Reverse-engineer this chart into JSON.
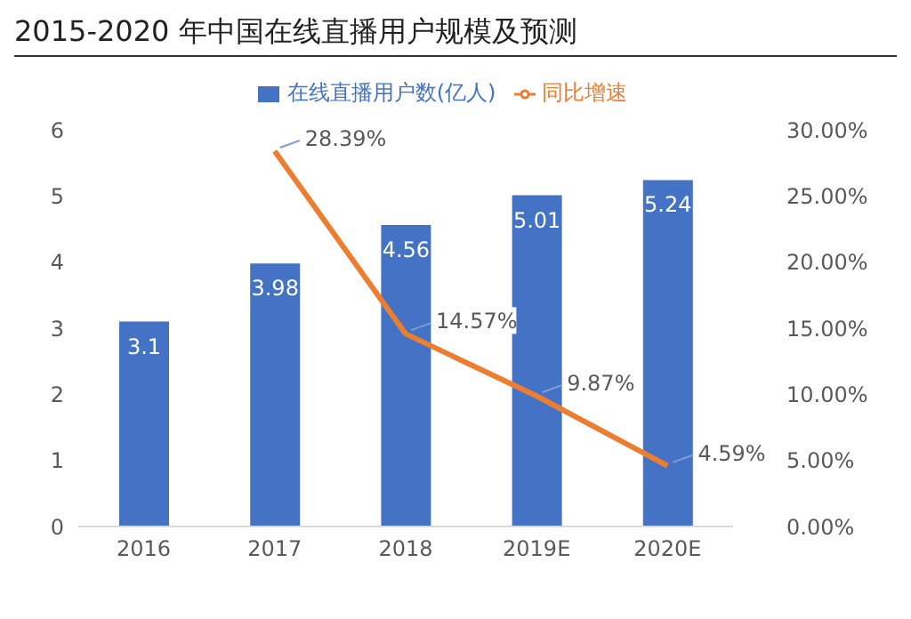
{
  "chart_data": {
    "type": "line",
    "title": "2015-2020 年中国在线直播用户规模及预测",
    "categories": [
      "2016",
      "2017",
      "2018",
      "2019E",
      "2020E"
    ],
    "series": [
      {
        "name": "在线直播用户数(亿人)",
        "type": "bar",
        "color": "#4472c4",
        "values": [
          3.1,
          3.98,
          4.56,
          5.01,
          5.24
        ],
        "value_labels": [
          "3.1",
          "3.98",
          "4.56",
          "5.01",
          "5.24"
        ]
      },
      {
        "name": "同比增速",
        "axis": "y2",
        "color": "#ed7d31",
        "values": [
          null,
          28.39,
          14.57,
          9.87,
          4.59
        ],
        "value_labels": [
          null,
          "28.39%",
          "14.57%",
          "9.87%",
          "4.59%"
        ]
      }
    ],
    "ylim": [
      0,
      6
    ],
    "yticks": [
      0,
      1,
      2,
      3,
      4,
      5,
      6
    ],
    "y2lim": [
      0,
      30
    ],
    "y2ticks": [
      {
        "value": 0,
        "label": "0.00%"
      },
      {
        "value": 5,
        "label": "5.00%"
      },
      {
        "value": 10,
        "label": "10.00%"
      },
      {
        "value": 15,
        "label": "15.00%"
      },
      {
        "value": 20,
        "label": "20.00%"
      },
      {
        "value": 25,
        "label": "25.00%"
      },
      {
        "value": 30,
        "label": "30.00%"
      }
    ],
    "grid": false,
    "legend": "top",
    "marker": "none",
    "line_style": "solid"
  }
}
